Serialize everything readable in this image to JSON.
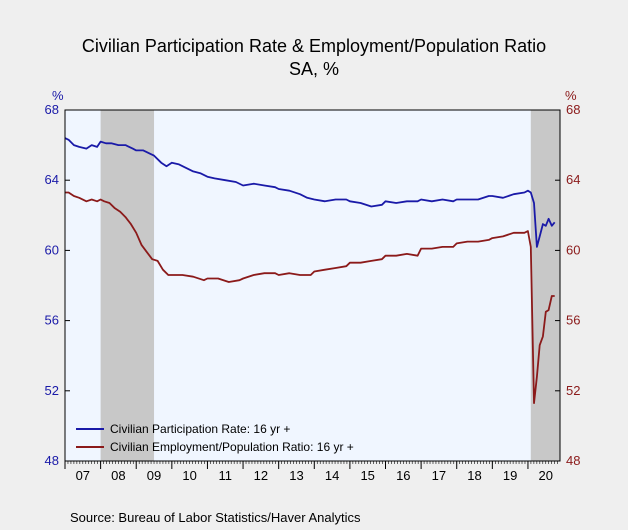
{
  "chart_data": {
    "type": "line",
    "title": "Civilian Participation Rate & Employment/Population Ratio",
    "subtitle": "SA, %",
    "source": "Source:  Bureau of Labor Statistics/Haver Analytics",
    "left_axis": {
      "unit": "%",
      "ylim": [
        48,
        68
      ],
      "ticks": [
        48,
        52,
        56,
        60,
        64,
        68
      ],
      "color": "#1a1aa8"
    },
    "right_axis": {
      "unit": "%",
      "ylim": [
        48,
        68
      ],
      "ticks": [
        48,
        52,
        56,
        60,
        64,
        68
      ],
      "color": "#8b1a1a"
    },
    "x_axis": {
      "range": [
        2007.0,
        2020.9
      ],
      "year_labels": [
        "07",
        "08",
        "09",
        "10",
        "11",
        "12",
        "13",
        "14",
        "15",
        "16",
        "17",
        "18",
        "19",
        "20"
      ]
    },
    "recessions": [
      {
        "start": 2008.0,
        "end": 2009.5
      },
      {
        "start": 2020.08,
        "end": 2020.9
      }
    ],
    "grid": false,
    "legend_position": "bottom-left",
    "series": [
      {
        "name": "Civilian Participation Rate: 16 yr +",
        "color": "#1a1aa8",
        "x": [
          2007.0,
          2007.1,
          2007.25,
          2007.4,
          2007.6,
          2007.75,
          2007.9,
          2008.0,
          2008.15,
          2008.3,
          2008.5,
          2008.7,
          2008.9,
          2009.0,
          2009.2,
          2009.4,
          2009.5,
          2009.7,
          2009.85,
          2010.0,
          2010.2,
          2010.4,
          2010.6,
          2010.8,
          2011.0,
          2011.2,
          2011.5,
          2011.8,
          2012.0,
          2012.3,
          2012.6,
          2012.9,
          2013.0,
          2013.3,
          2013.6,
          2013.8,
          2014.0,
          2014.3,
          2014.6,
          2014.9,
          2015.0,
          2015.3,
          2015.6,
          2015.9,
          2016.0,
          2016.3,
          2016.6,
          2016.9,
          2017.0,
          2017.3,
          2017.6,
          2017.9,
          2018.0,
          2018.3,
          2018.6,
          2018.9,
          2019.0,
          2019.3,
          2019.6,
          2019.9,
          2020.0,
          2020.08,
          2020.17,
          2020.25,
          2020.33,
          2020.42,
          2020.5,
          2020.58,
          2020.67,
          2020.75
        ],
        "values": [
          66.4,
          66.3,
          66.0,
          65.9,
          65.8,
          66.0,
          65.9,
          66.2,
          66.1,
          66.1,
          66.0,
          66.0,
          65.8,
          65.7,
          65.7,
          65.5,
          65.4,
          65.0,
          64.8,
          65.0,
          64.9,
          64.7,
          64.5,
          64.4,
          64.2,
          64.1,
          64.0,
          63.9,
          63.7,
          63.8,
          63.7,
          63.6,
          63.5,
          63.4,
          63.2,
          63.0,
          62.9,
          62.8,
          62.9,
          62.9,
          62.8,
          62.7,
          62.5,
          62.6,
          62.8,
          62.7,
          62.8,
          62.8,
          62.9,
          62.8,
          62.9,
          62.8,
          62.9,
          62.9,
          62.9,
          63.1,
          63.1,
          63.0,
          63.2,
          63.3,
          63.4,
          63.3,
          62.7,
          60.2,
          60.8,
          61.5,
          61.4,
          61.8,
          61.4,
          61.6
        ]
      },
      {
        "name": "Civilian Employment/Population Ratio: 16 yr +",
        "color": "#8b1a1a",
        "x": [
          2007.0,
          2007.1,
          2007.25,
          2007.4,
          2007.6,
          2007.75,
          2007.9,
          2008.0,
          2008.1,
          2008.25,
          2008.4,
          2008.55,
          2008.7,
          2008.85,
          2009.0,
          2009.15,
          2009.3,
          2009.45,
          2009.6,
          2009.75,
          2009.9,
          2010.0,
          2010.3,
          2010.6,
          2010.9,
          2011.0,
          2011.3,
          2011.6,
          2011.9,
          2012.0,
          2012.3,
          2012.6,
          2012.9,
          2013.0,
          2013.3,
          2013.6,
          2013.9,
          2014.0,
          2014.3,
          2014.6,
          2014.9,
          2015.0,
          2015.3,
          2015.6,
          2015.9,
          2016.0,
          2016.3,
          2016.6,
          2016.9,
          2017.0,
          2017.3,
          2017.6,
          2017.9,
          2018.0,
          2018.3,
          2018.6,
          2018.9,
          2019.0,
          2019.3,
          2019.6,
          2019.9,
          2020.0,
          2020.08,
          2020.17,
          2020.25,
          2020.33,
          2020.42,
          2020.5,
          2020.58,
          2020.67,
          2020.75
        ],
        "values": [
          63.3,
          63.3,
          63.1,
          63.0,
          62.8,
          62.9,
          62.8,
          62.9,
          62.8,
          62.7,
          62.4,
          62.2,
          61.9,
          61.5,
          61.0,
          60.3,
          59.9,
          59.5,
          59.4,
          58.9,
          58.6,
          58.6,
          58.6,
          58.5,
          58.3,
          58.4,
          58.4,
          58.2,
          58.3,
          58.4,
          58.6,
          58.7,
          58.7,
          58.6,
          58.7,
          58.6,
          58.6,
          58.8,
          58.9,
          59.0,
          59.1,
          59.3,
          59.3,
          59.4,
          59.5,
          59.7,
          59.7,
          59.8,
          59.7,
          60.1,
          60.1,
          60.2,
          60.2,
          60.4,
          60.5,
          60.5,
          60.6,
          60.7,
          60.8,
          61.0,
          61.0,
          61.1,
          60.2,
          51.3,
          52.8,
          54.6,
          55.1,
          56.5,
          56.6,
          57.4,
          57.4
        ]
      }
    ]
  }
}
